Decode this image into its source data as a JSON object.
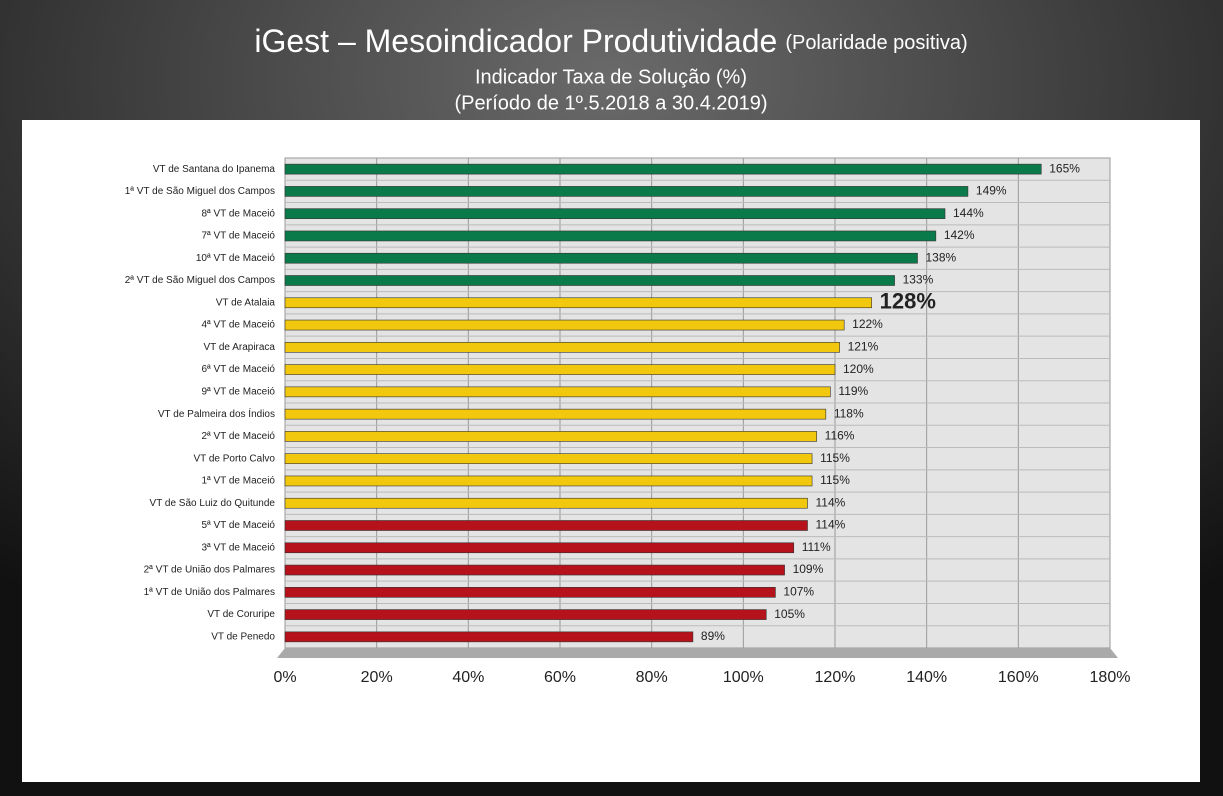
{
  "chart_data": {
    "type": "bar",
    "orientation": "horizontal",
    "title": "iGest – Mesoindicador Produtividade",
    "title_note": "(Polaridade positiva)",
    "subtitle": "Indicador Taxa de Solução (%)",
    "period": "(Período de 1º.5.2018  a  30.4.2019)",
    "categories": [
      "VT de Santana do Ipanema",
      "1ª VT de São Miguel dos Campos",
      "8ª VT de Maceió",
      "7ª VT de Maceió",
      "10ª VT de Maceió",
      "2ª VT de São Miguel dos Campos",
      "VT de Atalaia",
      "4ª VT de Maceió",
      "VT de Arapiraca",
      "6ª VT de Maceió",
      "9ª VT de Maceió",
      "VT de Palmeira dos Índios",
      "2ª VT de Maceió",
      "VT de Porto Calvo",
      "1ª VT de Maceió",
      "VT de São Luiz do Quitunde",
      "5ª VT de Maceió",
      "3ª VT de Maceió",
      "2ª VT de União dos Palmares",
      "1ª VT de União dos Palmares",
      "VT de Coruripe",
      "VT de Penedo"
    ],
    "values": [
      165,
      149,
      144,
      142,
      138,
      133,
      128,
      122,
      121,
      120,
      119,
      118,
      116,
      115,
      115,
      114,
      114,
      111,
      109,
      107,
      105,
      89
    ],
    "value_labels": [
      "165%",
      "149%",
      "144%",
      "142%",
      "138%",
      "133%",
      "128%",
      "122%",
      "121%",
      "120%",
      "119%",
      "118%",
      "116%",
      "115%",
      "115%",
      "114%",
      "114%",
      "111%",
      "109%",
      "107%",
      "105%",
      "89%"
    ],
    "colors": [
      "#0b7a4b",
      "#0b7a4b",
      "#0b7a4b",
      "#0b7a4b",
      "#0b7a4b",
      "#0b7a4b",
      "#f2c80f",
      "#f2c80f",
      "#f2c80f",
      "#f2c80f",
      "#f2c80f",
      "#f2c80f",
      "#f2c80f",
      "#f2c80f",
      "#f2c80f",
      "#f2c80f",
      "#b5121b",
      "#b5121b",
      "#b5121b",
      "#b5121b",
      "#b5121b",
      "#b5121b"
    ],
    "bold_labels": [
      6
    ],
    "xlim": [
      0,
      180
    ],
    "xticks": [
      {
        "value": 0,
        "label": "0%"
      },
      {
        "value": 20,
        "label": "20%"
      },
      {
        "value": 40,
        "label": "40%"
      },
      {
        "value": 60,
        "label": "60%"
      },
      {
        "value": 80,
        "label": "80%"
      },
      {
        "value": 100,
        "label": "100%"
      },
      {
        "value": 120,
        "label": "120%"
      },
      {
        "value": 140,
        "label": "140%"
      },
      {
        "value": 160,
        "label": "160%"
      },
      {
        "value": 180,
        "label": "180%"
      }
    ],
    "grid": true
  }
}
